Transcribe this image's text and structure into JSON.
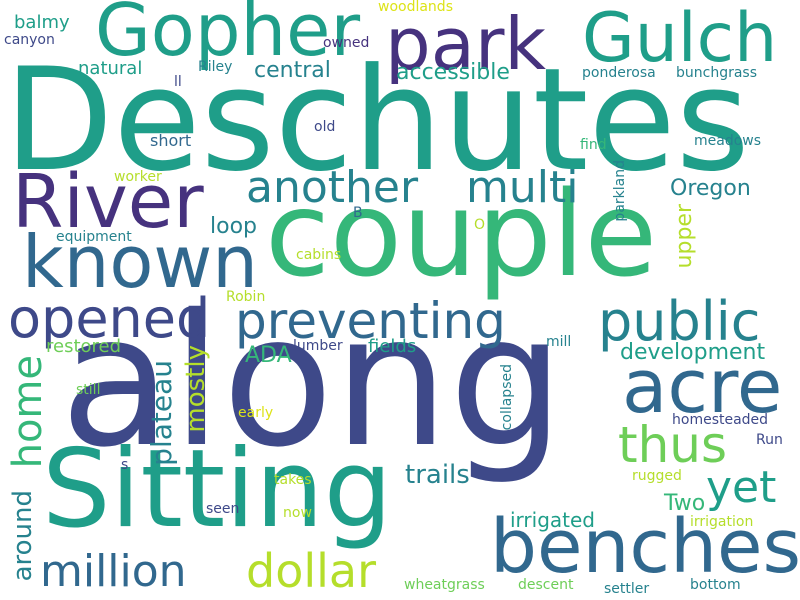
{
  "colors": {
    "background": "#ffffff",
    "darkPurple": "#46327e",
    "indigo": "#3e4989",
    "blue": "#31688e",
    "teal": "#26828e",
    "green": "#1f9e89",
    "emerald": "#35b779",
    "lime": "#6ece58",
    "yellowGreen": "#b5de2b",
    "yellow": "#dde318"
  },
  "words": [
    {
      "text": "along"
    },
    {
      "text": "Deschutes"
    },
    {
      "text": "couple"
    },
    {
      "text": "Sitting"
    },
    {
      "text": "park"
    },
    {
      "text": "Gopher"
    },
    {
      "text": "Gulch"
    },
    {
      "text": "River"
    },
    {
      "text": "known"
    },
    {
      "text": "benches"
    },
    {
      "text": "acre"
    },
    {
      "text": "preventing"
    },
    {
      "text": "opened"
    },
    {
      "text": "public"
    },
    {
      "text": "another"
    },
    {
      "text": "multi"
    },
    {
      "text": "million"
    },
    {
      "text": "dollar"
    },
    {
      "text": "thus"
    },
    {
      "text": "yet"
    },
    {
      "text": "home"
    },
    {
      "text": "plateau"
    },
    {
      "text": "around"
    },
    {
      "text": "mostly"
    },
    {
      "text": "development"
    },
    {
      "text": "trails"
    },
    {
      "text": "irrigated"
    },
    {
      "text": "Two"
    },
    {
      "text": "accessible"
    },
    {
      "text": "central"
    },
    {
      "text": "Oregon"
    },
    {
      "text": "upper"
    },
    {
      "text": "loop"
    },
    {
      "text": "ADA"
    },
    {
      "text": "fields"
    },
    {
      "text": "restored"
    },
    {
      "text": "natural"
    },
    {
      "text": "balmy"
    },
    {
      "text": "canyon"
    },
    {
      "text": "woodlands"
    },
    {
      "text": "owned"
    },
    {
      "text": "ll"
    },
    {
      "text": "Riley"
    },
    {
      "text": "ponderosa"
    },
    {
      "text": "bunchgrass"
    },
    {
      "text": "old"
    },
    {
      "text": "short"
    },
    {
      "text": "find"
    },
    {
      "text": "meadows"
    },
    {
      "text": "worker"
    },
    {
      "text": "parkland"
    },
    {
      "text": "B"
    },
    {
      "text": "O"
    },
    {
      "text": "equipment"
    },
    {
      "text": "cabins"
    },
    {
      "text": "Robin"
    },
    {
      "text": "lumber"
    },
    {
      "text": "mill"
    },
    {
      "text": "still"
    },
    {
      "text": "early"
    },
    {
      "text": "collapsed"
    },
    {
      "text": "homesteaded"
    },
    {
      "text": "Run"
    },
    {
      "text": "s"
    },
    {
      "text": "takes"
    },
    {
      "text": "rugged"
    },
    {
      "text": "seen"
    },
    {
      "text": "now"
    },
    {
      "text": "irrigation"
    },
    {
      "text": "wheatgrass"
    },
    {
      "text": "descent"
    },
    {
      "text": "settler"
    },
    {
      "text": "bottom"
    }
  ]
}
